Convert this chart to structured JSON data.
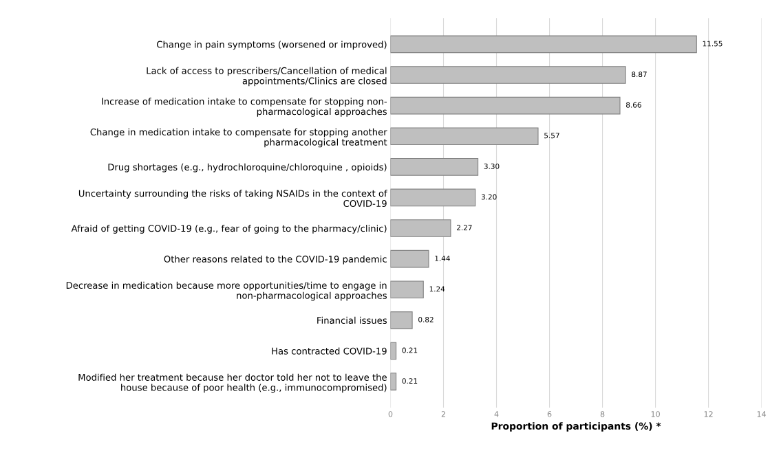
{
  "chart_data": {
    "type": "bar",
    "orientation": "horizontal",
    "xlabel": "Proportion of participants (%) *",
    "categories": [
      "Change in pain symptoms (worsened or improved)",
      "Lack of access to prescribers/Cancellation of medical\nappointments/Clinics are closed",
      "Increase of medication intake to compensate for stopping non-\npharmacological approaches",
      "Change in medication intake to compensate for stopping another\npharmacological treatment",
      "Drug shortages (e.g., hydrochloroquine/chloroquine , opioids)",
      "Uncertainty surrounding the risks of taking NSAIDs in the context of\nCOVID-19",
      "Afraid of getting COVID-19 (e.g., fear of going to the pharmacy/clinic)",
      "Other reasons related to the COVID-19 pandemic",
      "Decrease in medication because more opportunities/time to engage in\nnon-pharmacological approaches",
      "Financial issues",
      "Has contracted COVID-19",
      "Modified her treatment because her doctor told her not to leave the\nhouse because of poor health (e.g., immunocompromised)"
    ],
    "values": [
      11.55,
      8.87,
      8.66,
      5.57,
      3.3,
      3.2,
      2.27,
      1.44,
      1.24,
      0.82,
      0.21,
      0.21
    ],
    "value_labels": [
      "11.55",
      "8.87",
      "8.66",
      "5.57",
      "3.30",
      "3.20",
      "2.27",
      "1.44",
      "1.24",
      "0.82",
      "0.21",
      "0.21"
    ],
    "color": "#bfbfbf",
    "xlim": [
      0,
      14
    ],
    "xticks": [
      0,
      2,
      4,
      6,
      8,
      10,
      12,
      14
    ],
    "grid": "x"
  }
}
